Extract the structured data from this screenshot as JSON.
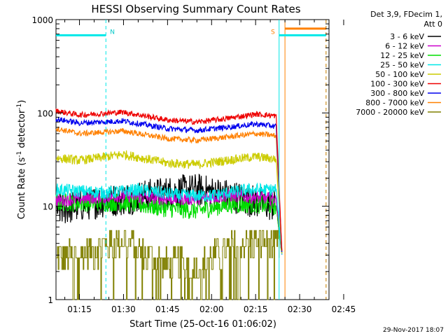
{
  "chart_data": {
    "type": "line",
    "title": "HESSI Observing Summary Count Rates",
    "xlabel": "Start Time (25-Oct-16 01:06:02)",
    "ylabel_main": "Count Rate (s",
    "ylabel_sup1": "-1",
    "ylabel_mid": " detector",
    "ylabel_sup2": "-1",
    "ylabel_end": ")",
    "yscale": "log",
    "ylim": [
      1,
      1000
    ],
    "xlim_minutes": [
      7.0,
      100.0
    ],
    "x_ticks": [
      {
        "minute": 15,
        "label": "01:15"
      },
      {
        "minute": 30,
        "label": "01:30"
      },
      {
        "minute": 45,
        "label": "01:45"
      },
      {
        "minute": 60,
        "label": "02:00"
      },
      {
        "minute": 75,
        "label": "02:15"
      },
      {
        "minute": 90,
        "label": "02:30"
      },
      {
        "minute": 105,
        "label": "02:45"
      }
    ],
    "y_ticks": [
      {
        "value": 1,
        "label": "1"
      },
      {
        "value": 10,
        "label": "10"
      },
      {
        "value": 100,
        "label": "100"
      },
      {
        "value": 1000,
        "label": "1000"
      }
    ],
    "legend_header": [
      "Det 3,9, FDecim 1,",
      "Att 0"
    ],
    "series": [
      {
        "name": "3 - 6 keV",
        "color": "#000000",
        "start": 9,
        "end": 10,
        "noise": 0.18,
        "drift": [
          12,
          10,
          9,
          13,
          15,
          13,
          11
        ],
        "knots": [
          [
            7,
            9
          ],
          [
            20,
            11
          ],
          [
            30,
            12
          ],
          [
            45,
            14
          ],
          [
            55,
            15
          ],
          [
            66,
            13
          ],
          [
            82,
            10
          ],
          [
            84,
            3
          ]
        ]
      },
      {
        "name": "6 - 12 keV",
        "color": "#cc00cc",
        "noise": 0.07,
        "knots": [
          [
            7,
            11.5
          ],
          [
            30,
            13
          ],
          [
            45,
            12
          ],
          [
            55,
            12
          ],
          [
            66,
            13
          ],
          [
            75,
            12.5
          ],
          [
            82,
            12
          ],
          [
            84,
            3
          ]
        ]
      },
      {
        "name": "12 - 25 keV",
        "color": "#00dd00",
        "noise": 0.1,
        "knots": [
          [
            7,
            11
          ],
          [
            30,
            11
          ],
          [
            45,
            9.5
          ],
          [
            55,
            9
          ],
          [
            66,
            10.5
          ],
          [
            75,
            10.5
          ],
          [
            82,
            10
          ],
          [
            84,
            3
          ]
        ]
      },
      {
        "name": "25 - 50 keV",
        "color": "#00e8e8",
        "noise": 0.07,
        "knots": [
          [
            7,
            15
          ],
          [
            25,
            14
          ],
          [
            35,
            15
          ],
          [
            50,
            13
          ],
          [
            60,
            13
          ],
          [
            72,
            15
          ],
          [
            82,
            15
          ],
          [
            84,
            3
          ]
        ]
      },
      {
        "name": "50 - 100 keV",
        "color": "#cccc00",
        "noise": 0.05,
        "knots": [
          [
            7,
            33
          ],
          [
            15,
            31
          ],
          [
            30,
            36
          ],
          [
            45,
            29
          ],
          [
            55,
            28
          ],
          [
            65,
            31
          ],
          [
            75,
            34
          ],
          [
            82,
            32
          ],
          [
            84,
            3
          ]
        ]
      },
      {
        "name": "100 - 300 keV",
        "color": "#ee0000",
        "noise": 0.03,
        "knots": [
          [
            7,
            105
          ],
          [
            15,
            95
          ],
          [
            30,
            102
          ],
          [
            45,
            84
          ],
          [
            55,
            80
          ],
          [
            65,
            87
          ],
          [
            75,
            97
          ],
          [
            82,
            93
          ],
          [
            84,
            3
          ]
        ]
      },
      {
        "name": "300 - 800 keV",
        "color": "#0000ee",
        "noise": 0.03,
        "knots": [
          [
            7,
            86
          ],
          [
            15,
            78
          ],
          [
            30,
            82
          ],
          [
            45,
            68
          ],
          [
            55,
            65
          ],
          [
            65,
            70
          ],
          [
            75,
            76
          ],
          [
            82,
            72
          ],
          [
            84,
            3
          ]
        ]
      },
      {
        "name": "800 - 7000 keV",
        "color": "#ff8000",
        "noise": 0.03,
        "knots": [
          [
            7,
            68
          ],
          [
            15,
            60
          ],
          [
            30,
            64
          ],
          [
            45,
            53
          ],
          [
            55,
            51
          ],
          [
            65,
            55
          ],
          [
            75,
            60
          ],
          [
            82,
            57
          ],
          [
            84,
            3
          ]
        ]
      },
      {
        "name": "7000 - 20000 keV",
        "color": "#808000",
        "step": true,
        "knots": [
          [
            7,
            2.8
          ],
          [
            16,
            3.0
          ],
          [
            24,
            3.8
          ],
          [
            30,
            4.5
          ],
          [
            36,
            3.2
          ],
          [
            45,
            2.4
          ],
          [
            55,
            2.2
          ],
          [
            62,
            3.0
          ],
          [
            70,
            4.0
          ],
          [
            80,
            4.3
          ],
          [
            83,
            3.5
          ]
        ]
      }
    ],
    "flag_bars": [
      {
        "label": "N",
        "from": 7,
        "to": 24,
        "color": "#00e8e8"
      },
      {
        "label": "S",
        "from": 83,
        "to": 99,
        "color": "#00e8e8"
      },
      {
        "label": "",
        "from": 85,
        "to": 99,
        "color": "#ff8000",
        "thick": true
      }
    ],
    "vlines": [
      {
        "minute": 24,
        "color": "#00e8e8",
        "dashed": true
      },
      {
        "minute": 83,
        "color": "#00e8e8",
        "dashed": false
      },
      {
        "minute": 85,
        "color": "#ff8000",
        "dashed": false
      },
      {
        "minute": 99,
        "color": "#00e8e8",
        "dashed": true
      },
      {
        "minute": 99,
        "color": "#ff8000",
        "dashed": true
      }
    ],
    "footer_date": "29-Nov-2017 18:07"
  }
}
